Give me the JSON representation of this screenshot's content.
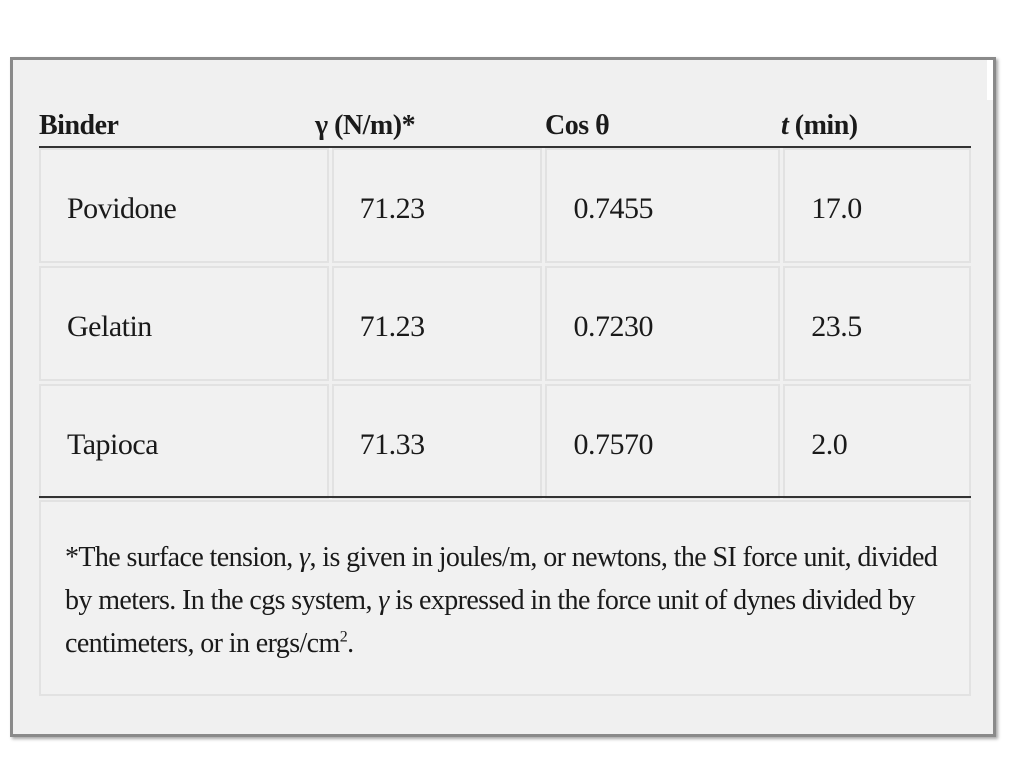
{
  "table": {
    "headers": {
      "binder": "Binder",
      "gamma": "γ (N/m)*",
      "cos": "Cos θ",
      "t_italic": "t",
      "t_rest": " (min)"
    },
    "rows": [
      {
        "binder": "Povidone",
        "gamma": "71.23",
        "cos": "0.7455",
        "t": "17.0"
      },
      {
        "binder": "Gelatin",
        "gamma": "71.23",
        "cos": "0.7230",
        "t": "23.5"
      },
      {
        "binder": "Tapioca",
        "gamma": "71.33",
        "cos": "0.7570",
        "t": "2.0"
      }
    ]
  },
  "footnote": {
    "part1": "*The surface tension, ",
    "gamma1": "γ",
    "part2": ", is given in joules/m, or newtons, the SI force unit, divided by meters. In the cgs system, ",
    "gamma2": "γ",
    "part3": " is expressed in the force unit of dynes divided by centimeters, or in ergs/cm",
    "superscript": "2",
    "end": "."
  }
}
